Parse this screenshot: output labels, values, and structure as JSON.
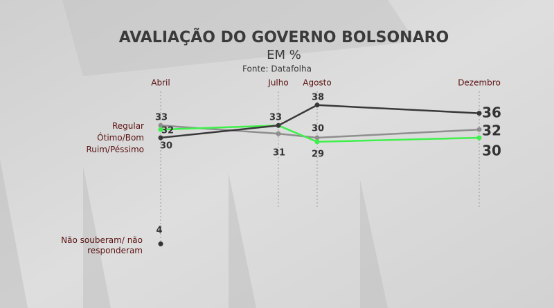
{
  "chart_data": {
    "type": "line",
    "title": "AVALIAÇÃO DO GOVERNO BOLSONARO",
    "subtitle": "EM %",
    "source": "Fonte: Datafolha",
    "categories": [
      "Abril",
      "Julho",
      "Agosto",
      "Dezembro"
    ],
    "series": [
      {
        "name": "Regular",
        "color": "#8e8e8e",
        "values": [
          33,
          31,
          30,
          32
        ]
      },
      {
        "name": "Ótimo/Bom",
        "color": "#3ff04c",
        "values": [
          32,
          33,
          29,
          30
        ]
      },
      {
        "name": "Ruim/Péssimo",
        "color": "#383838",
        "values": [
          30,
          33,
          38,
          36
        ]
      },
      {
        "name": "Não souberam/ não responderam",
        "color": "#333333",
        "values": [
          4,
          null,
          null,
          null
        ]
      }
    ]
  }
}
